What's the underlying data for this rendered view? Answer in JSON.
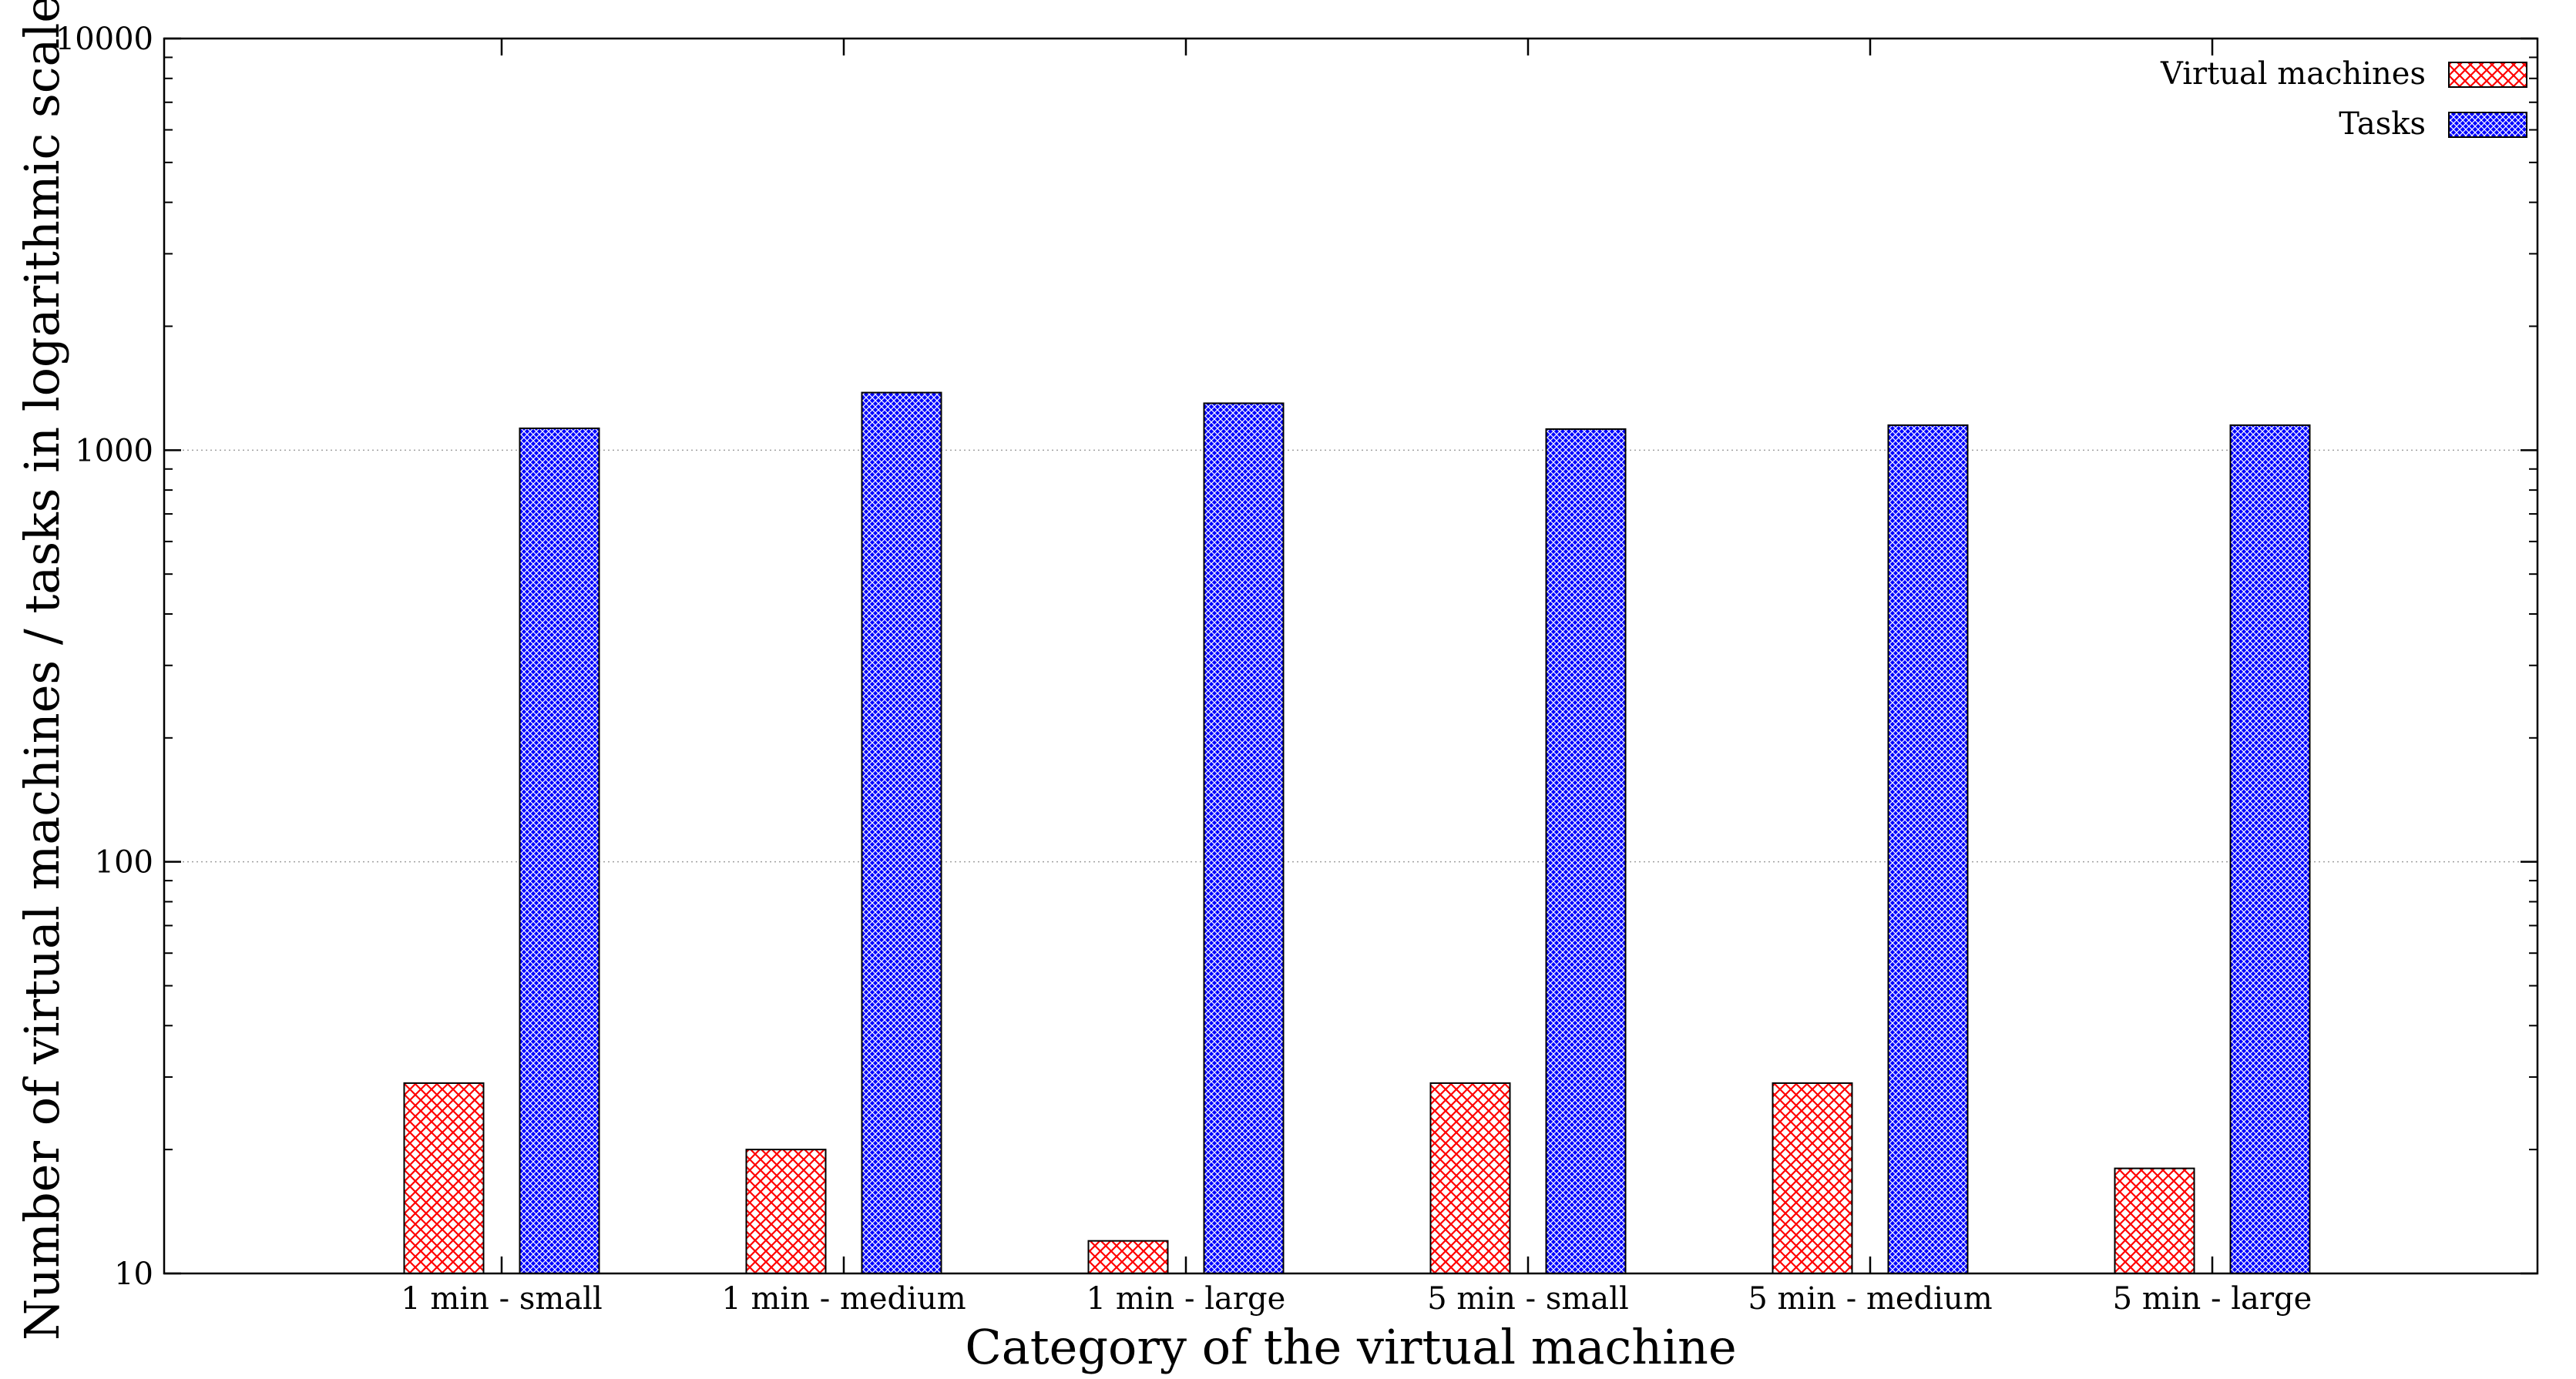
{
  "chart_data": {
    "type": "bar",
    "title": "",
    "xlabel": "Category of the virtual machine",
    "ylabel": "Number of virtual machines / tasks in logarithmic scale",
    "yscale": "log",
    "ylim": [
      10,
      10000
    ],
    "yticks": [
      10,
      100,
      1000,
      10000
    ],
    "ytick_labels": [
      "10",
      "100",
      "1000",
      "10000"
    ],
    "grid": "horizontal-dotted",
    "legend_position": "top-right",
    "categories": [
      "1 min - small",
      "1 min - medium",
      "1 min - large",
      "5 min - small",
      "5 min - medium",
      "5 min - large"
    ],
    "series": [
      {
        "name": "Virtual machines",
        "color": "#ff0000",
        "pattern": "crosshatch",
        "values": [
          29,
          20,
          12,
          29,
          29,
          18
        ]
      },
      {
        "name": "Tasks",
        "color": "#0000ff",
        "pattern": "dense-crosshatch",
        "values": [
          1130,
          1380,
          1300,
          1125,
          1150,
          1150
        ]
      }
    ]
  }
}
